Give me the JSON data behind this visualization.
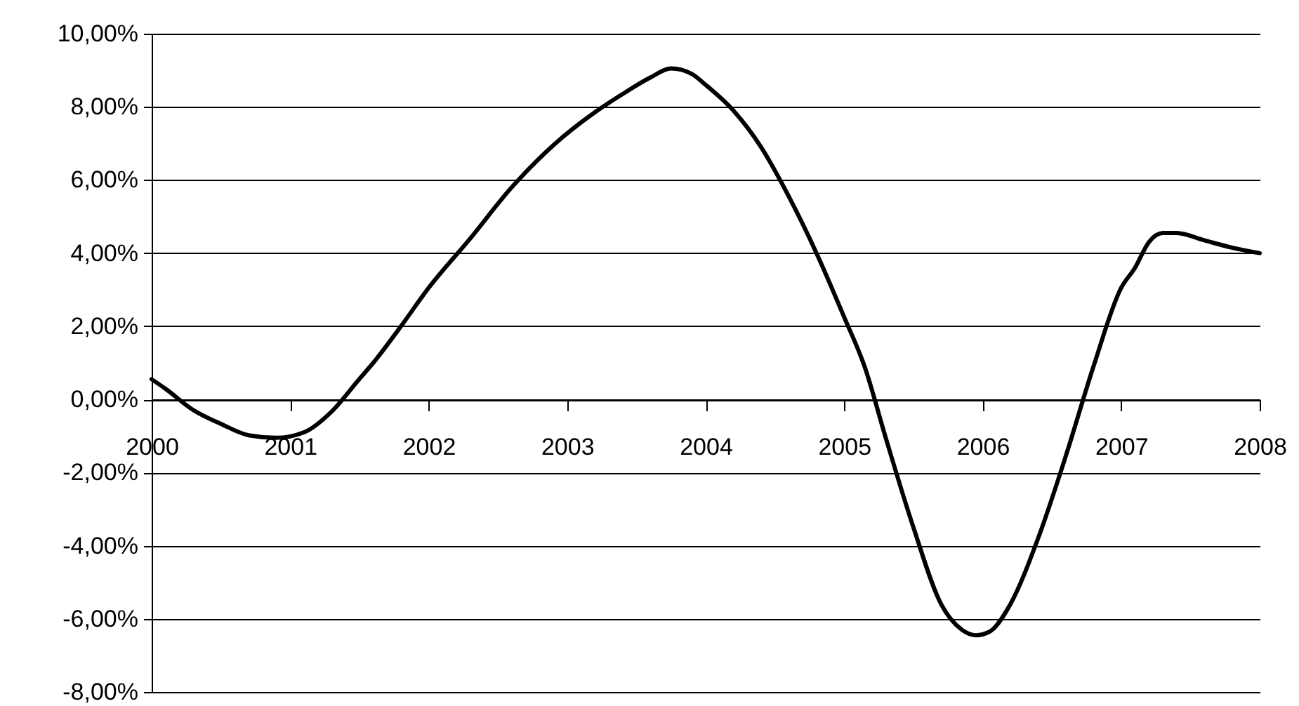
{
  "chart_data": {
    "type": "line",
    "x": [
      2000,
      2000.1,
      2000.3,
      2000.5,
      2000.7,
      2000.9,
      2001.1,
      2001.3,
      2001.5,
      2001.6,
      2001.8,
      2002,
      2002.3,
      2002.6,
      2002.9,
      2003.2,
      2003.4,
      2003.6,
      2003.75,
      2003.9,
      2004,
      2004.2,
      2004.4,
      2004.6,
      2004.8,
      2005,
      2005.15,
      2005.3,
      2005.5,
      2005.7,
      2005.85,
      2005.95,
      2006.05,
      2006.2,
      2006.4,
      2006.6,
      2006.8,
      2007,
      2007.1,
      2007.2,
      2007.3,
      2007.4,
      2007.6,
      2007.8,
      2008
    ],
    "series": [
      {
        "color": "#000000",
        "values": [
          0.55,
          0.29,
          -0.29,
          -0.67,
          -0.98,
          -1.05,
          -0.9,
          -0.33,
          0.56,
          1.0,
          2.0,
          3.05,
          4.4,
          5.8,
          6.95,
          7.85,
          8.35,
          8.8,
          9.05,
          8.9,
          8.6,
          7.9,
          6.9,
          5.55,
          4.0,
          2.25,
          0.87,
          -1.05,
          -3.5,
          -5.6,
          -6.3,
          -6.45,
          -6.35,
          -5.6,
          -3.8,
          -1.55,
          0.9,
          3.05,
          3.6,
          4.3,
          4.55,
          4.55,
          4.35,
          4.15,
          4.0
        ]
      }
    ],
    "xlim": [
      2000,
      2008
    ],
    "xticks": [
      2000,
      2001,
      2002,
      2003,
      2004,
      2005,
      2006,
      2007,
      2008
    ],
    "ylim": [
      -8,
      10
    ],
    "yticks": [
      {
        "value": -8,
        "label": "-8,00%"
      },
      {
        "value": -6,
        "label": "-6,00%"
      },
      {
        "value": -4,
        "label": "-4,00%"
      },
      {
        "value": -2,
        "label": "-2,00%"
      },
      {
        "value": 0,
        "label": "0,00%"
      },
      {
        "value": 2,
        "label": "2,00%"
      },
      {
        "value": 4,
        "label": "4,00%"
      },
      {
        "value": 6,
        "label": "6,00%"
      },
      {
        "value": 8,
        "label": "8,00%"
      },
      {
        "value": 10,
        "label": "10,00%"
      }
    ],
    "grid": "y",
    "marker": "none",
    "line_style": "solid"
  }
}
